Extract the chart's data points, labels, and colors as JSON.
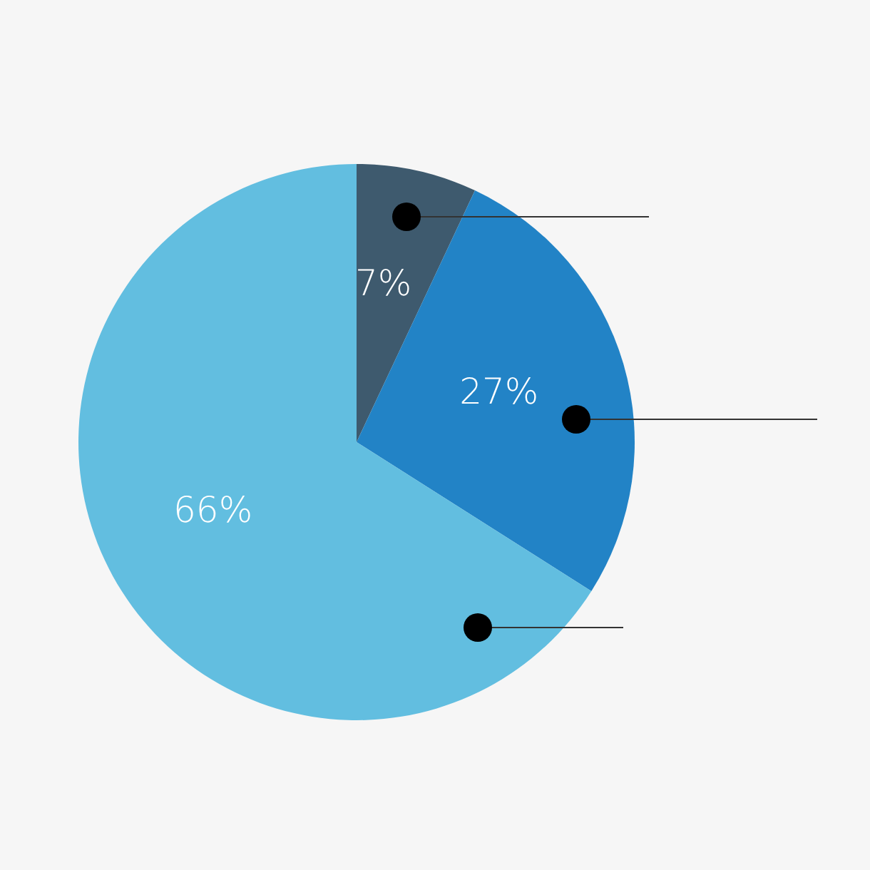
{
  "chart_data": {
    "type": "pie",
    "categories": [
      null,
      null,
      null
    ],
    "values": [
      7,
      27,
      66
    ],
    "colors": [
      "#3e5a6e",
      "#2283c6",
      "#62bee0"
    ],
    "value_labels": [
      "7%",
      "27%",
      "66%"
    ],
    "legend": false
  }
}
